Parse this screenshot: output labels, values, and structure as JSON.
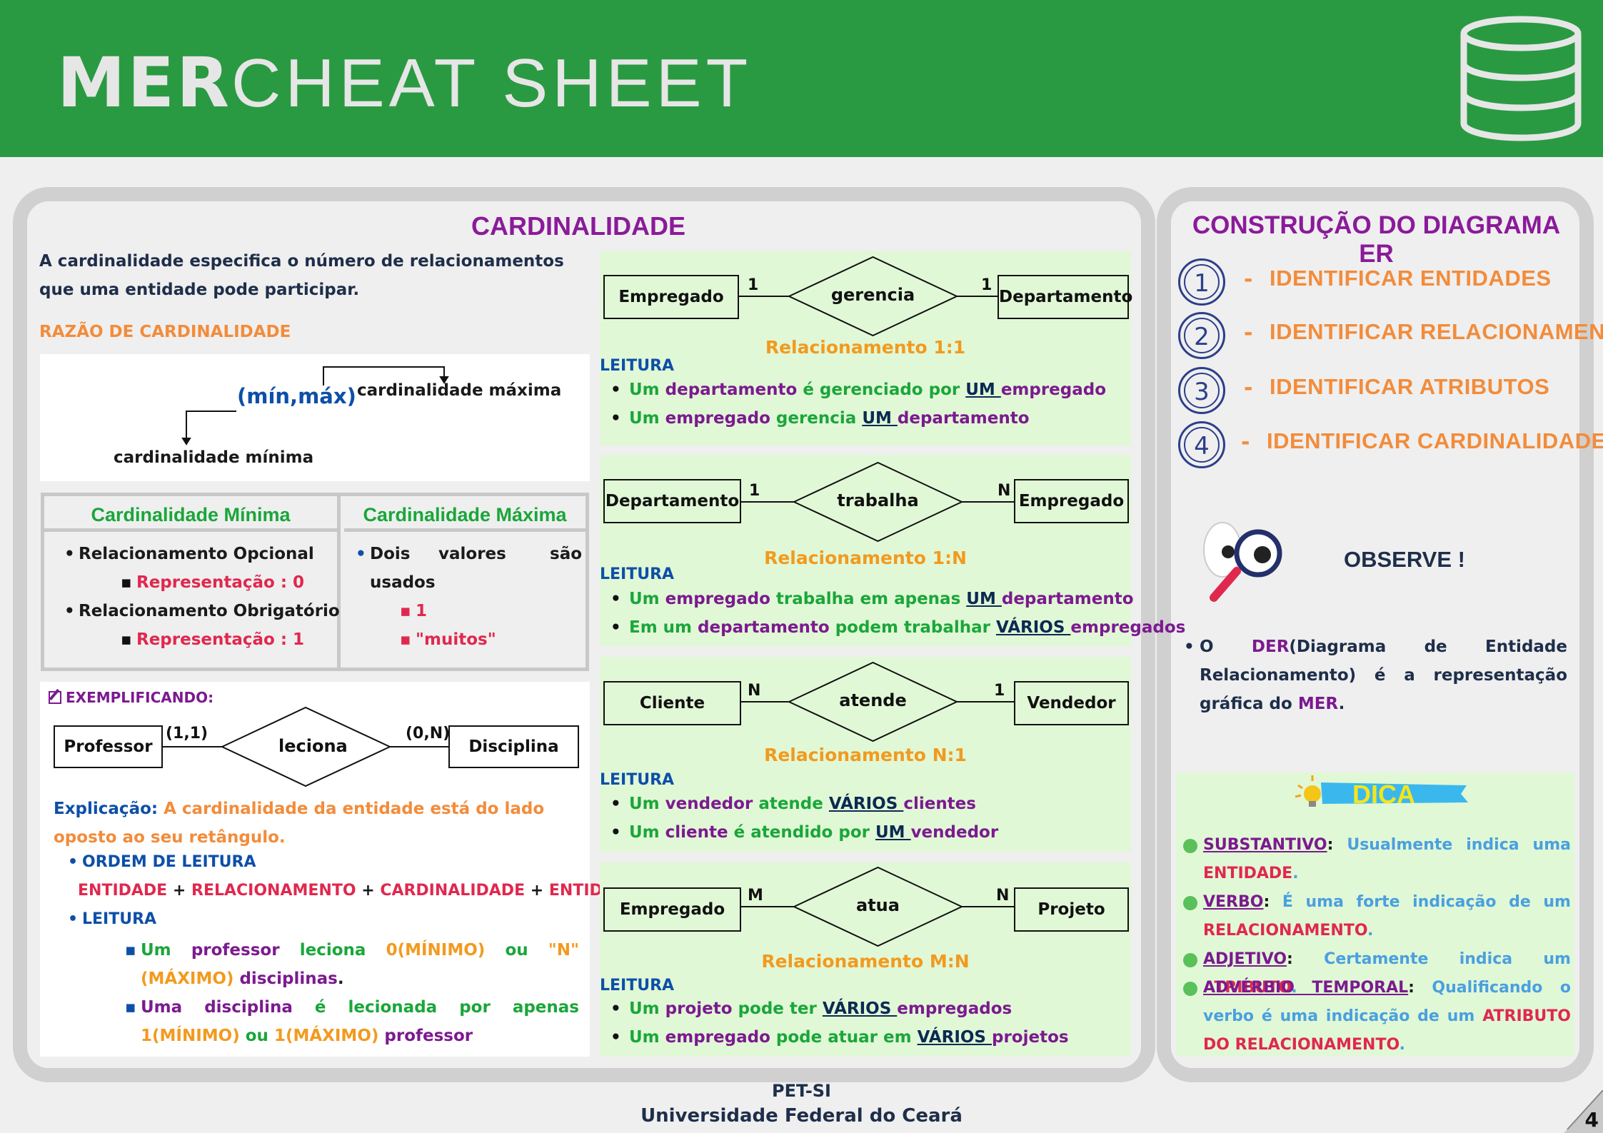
{
  "header": {
    "title_bold": "MER",
    "title_light": "CHEAT SHEET"
  },
  "cardinalidade": {
    "title": "CARDINALIDADE",
    "intro": "A cardinalidade especifica o número de relacionamentos que uma entidade pode participar.",
    "razao_title": "RAZÃO DE CARDINALIDADE",
    "notation": "(mín,máx)",
    "max_label": "cardinalidade máxima",
    "min_label": "cardinalidade mínima",
    "table": {
      "min_header": "Cardinalidade Mínima",
      "max_header": "Cardinalidade Máxima",
      "opcional": "Relacionamento Opcional",
      "opcional_rep": "Representação : 0",
      "obrigatorio": "Relacionamento Obrigatório",
      "obrigatorio_rep": "Representação : 1",
      "dois_1": "Dois",
      "dois_2": "valores",
      "dois_3": "são",
      "dois_4": "usados",
      "v1": "1",
      "v2": "\"muitos\""
    },
    "exemplo": {
      "title": "EXEMPLIFICANDO:",
      "ent1": "Professor",
      "rel": "leciona",
      "ent2": "Disciplina",
      "card1": "(1,1)",
      "card2": "(0,N)",
      "exp_label": "Explicação:",
      "exp_text": "A cardinalidade da entidade está do lado oposto ao seu retângulo.",
      "ordem_label": "ORDEM DE  LEITURA",
      "ordem_entidade1": "ENTIDADE",
      "ordem_plus": "+",
      "ordem_rel": "RELACIONAMENTO",
      "ordem_card": "CARDINALIDADE",
      "ordem_entidade2": "ENTIDADE",
      "leitura_label": "LEITURA",
      "l1_a": "Um",
      "l1_b": "professor",
      "l1_c": "leciona",
      "l1_d": "0(MÍNIMO)",
      "l1_e": "ou",
      "l1_f": "\"N\"(MÁXIMO)",
      "l1_g": "disciplinas",
      "l1_h": ".",
      "l2_a": "Uma",
      "l2_b": "disciplina",
      "l2_c": "é lecionada por apenas",
      "l2_d": "1(MÍNIMO)",
      "l2_e": "ou",
      "l2_f": "1(MÁXIMO)",
      "l2_g": "professor"
    }
  },
  "relacionamentos": [
    {
      "ent1": "Empregado",
      "rel": "gerencia",
      "ent2": "Departamento",
      "c1": "1",
      "c2": "1",
      "title": "Relacionamento 1:1",
      "leitura": "LEITURA",
      "b1": [
        "Um",
        "departamento",
        "é gerenciado por",
        "UM",
        "empregado"
      ],
      "b2": [
        "Um",
        "empregado",
        "gerencia",
        "UM",
        "departamento"
      ]
    },
    {
      "ent1": "Departamento",
      "rel": "trabalha",
      "ent2": "Empregado",
      "c1": "1",
      "c2": "N",
      "title": "Relacionamento 1:N",
      "leitura": "LEITURA",
      "b1": [
        "Um",
        "empregado",
        "trabalha em apenas",
        "UM",
        "departamento"
      ],
      "b2": [
        "Em um",
        "departamento",
        "podem trabalhar",
        "VÁRIOS",
        "empregados"
      ]
    },
    {
      "ent1": "Cliente",
      "rel": "atende",
      "ent2": "Vendedor",
      "c1": "N",
      "c2": "1",
      "title": "Relacionamento N:1",
      "leitura": "LEITURA",
      "b1": [
        "Um",
        "vendedor",
        "atende",
        "VÁRIOS",
        "clientes"
      ],
      "b2": [
        "Um",
        "cliente",
        "é atendido por",
        "UM",
        "vendedor"
      ]
    },
    {
      "ent1": "Empregado",
      "rel": "atua",
      "ent2": "Projeto",
      "c1": "M",
      "c2": "N",
      "title": "Relacionamento M:N",
      "leitura": "LEITURA",
      "b1": [
        "Um",
        "projeto",
        "pode  ter",
        "VÁRIOS",
        "empregados"
      ],
      "b2": [
        "Um",
        "empregado",
        "pode atuar em",
        "VÁRIOS",
        "projetos"
      ]
    }
  ],
  "construcao": {
    "title": "CONSTRUÇÃO DO DIAGRAMA ER",
    "steps": [
      {
        "num": "1",
        "dash": "-",
        "text": "IDENTIFICAR ENTIDADES"
      },
      {
        "num": "2",
        "dash": "-",
        "text": "IDENTIFICAR RELACIONAMENTOS"
      },
      {
        "num": "3",
        "dash": "-",
        "text": "IDENTIFICAR ATRIBUTOS"
      },
      {
        "num": "4",
        "dash": "-",
        "text": "IDENTIFICAR CARDINALIDADES"
      }
    ],
    "observe": "OBSERVE !",
    "obs_a": "O",
    "obs_b": "DER",
    "obs_c": "(Diagrama de Entidade Relacionamento) é a representação gráfica do",
    "obs_d": "MER",
    "obs_e": "."
  },
  "dica": {
    "title": "DICA",
    "d1_a": "SUBSTANTIVO",
    "d1_b": ":",
    "d1_c": "Usualmente indica uma",
    "d1_d": "ENTIDADE",
    "d1_e": ".",
    "d2_a": "VERBO",
    "d2_b": ":",
    "d2_c": "É uma forte indicação de um",
    "d2_d": "RELACIONAMENTO",
    "d2_e": ".",
    "d3_a": "ADJETIVO",
    "d3_b": ":",
    "d3_c": "Certamente indica um",
    "d3_d": "ATRIBUTO",
    "d3_e": ".",
    "d4_a": "ADVÉRBIO TEMPORAL",
    "d4_b": ":",
    "d4_c": "Qualificando o verbo é uma indicação de um",
    "d4_d": "ATRIBUTO DO RELACIONAMENTO",
    "d4_e": "."
  },
  "footer": {
    "line1": "PET-SI",
    "line2": "Universidade Federal do Ceará",
    "page": "4"
  },
  "colors": {
    "header_green": "#2a9a42",
    "accent_purple": "#7b1a8f",
    "accent_orange": "#f28c3b",
    "box_green": "#e1f8d6"
  }
}
